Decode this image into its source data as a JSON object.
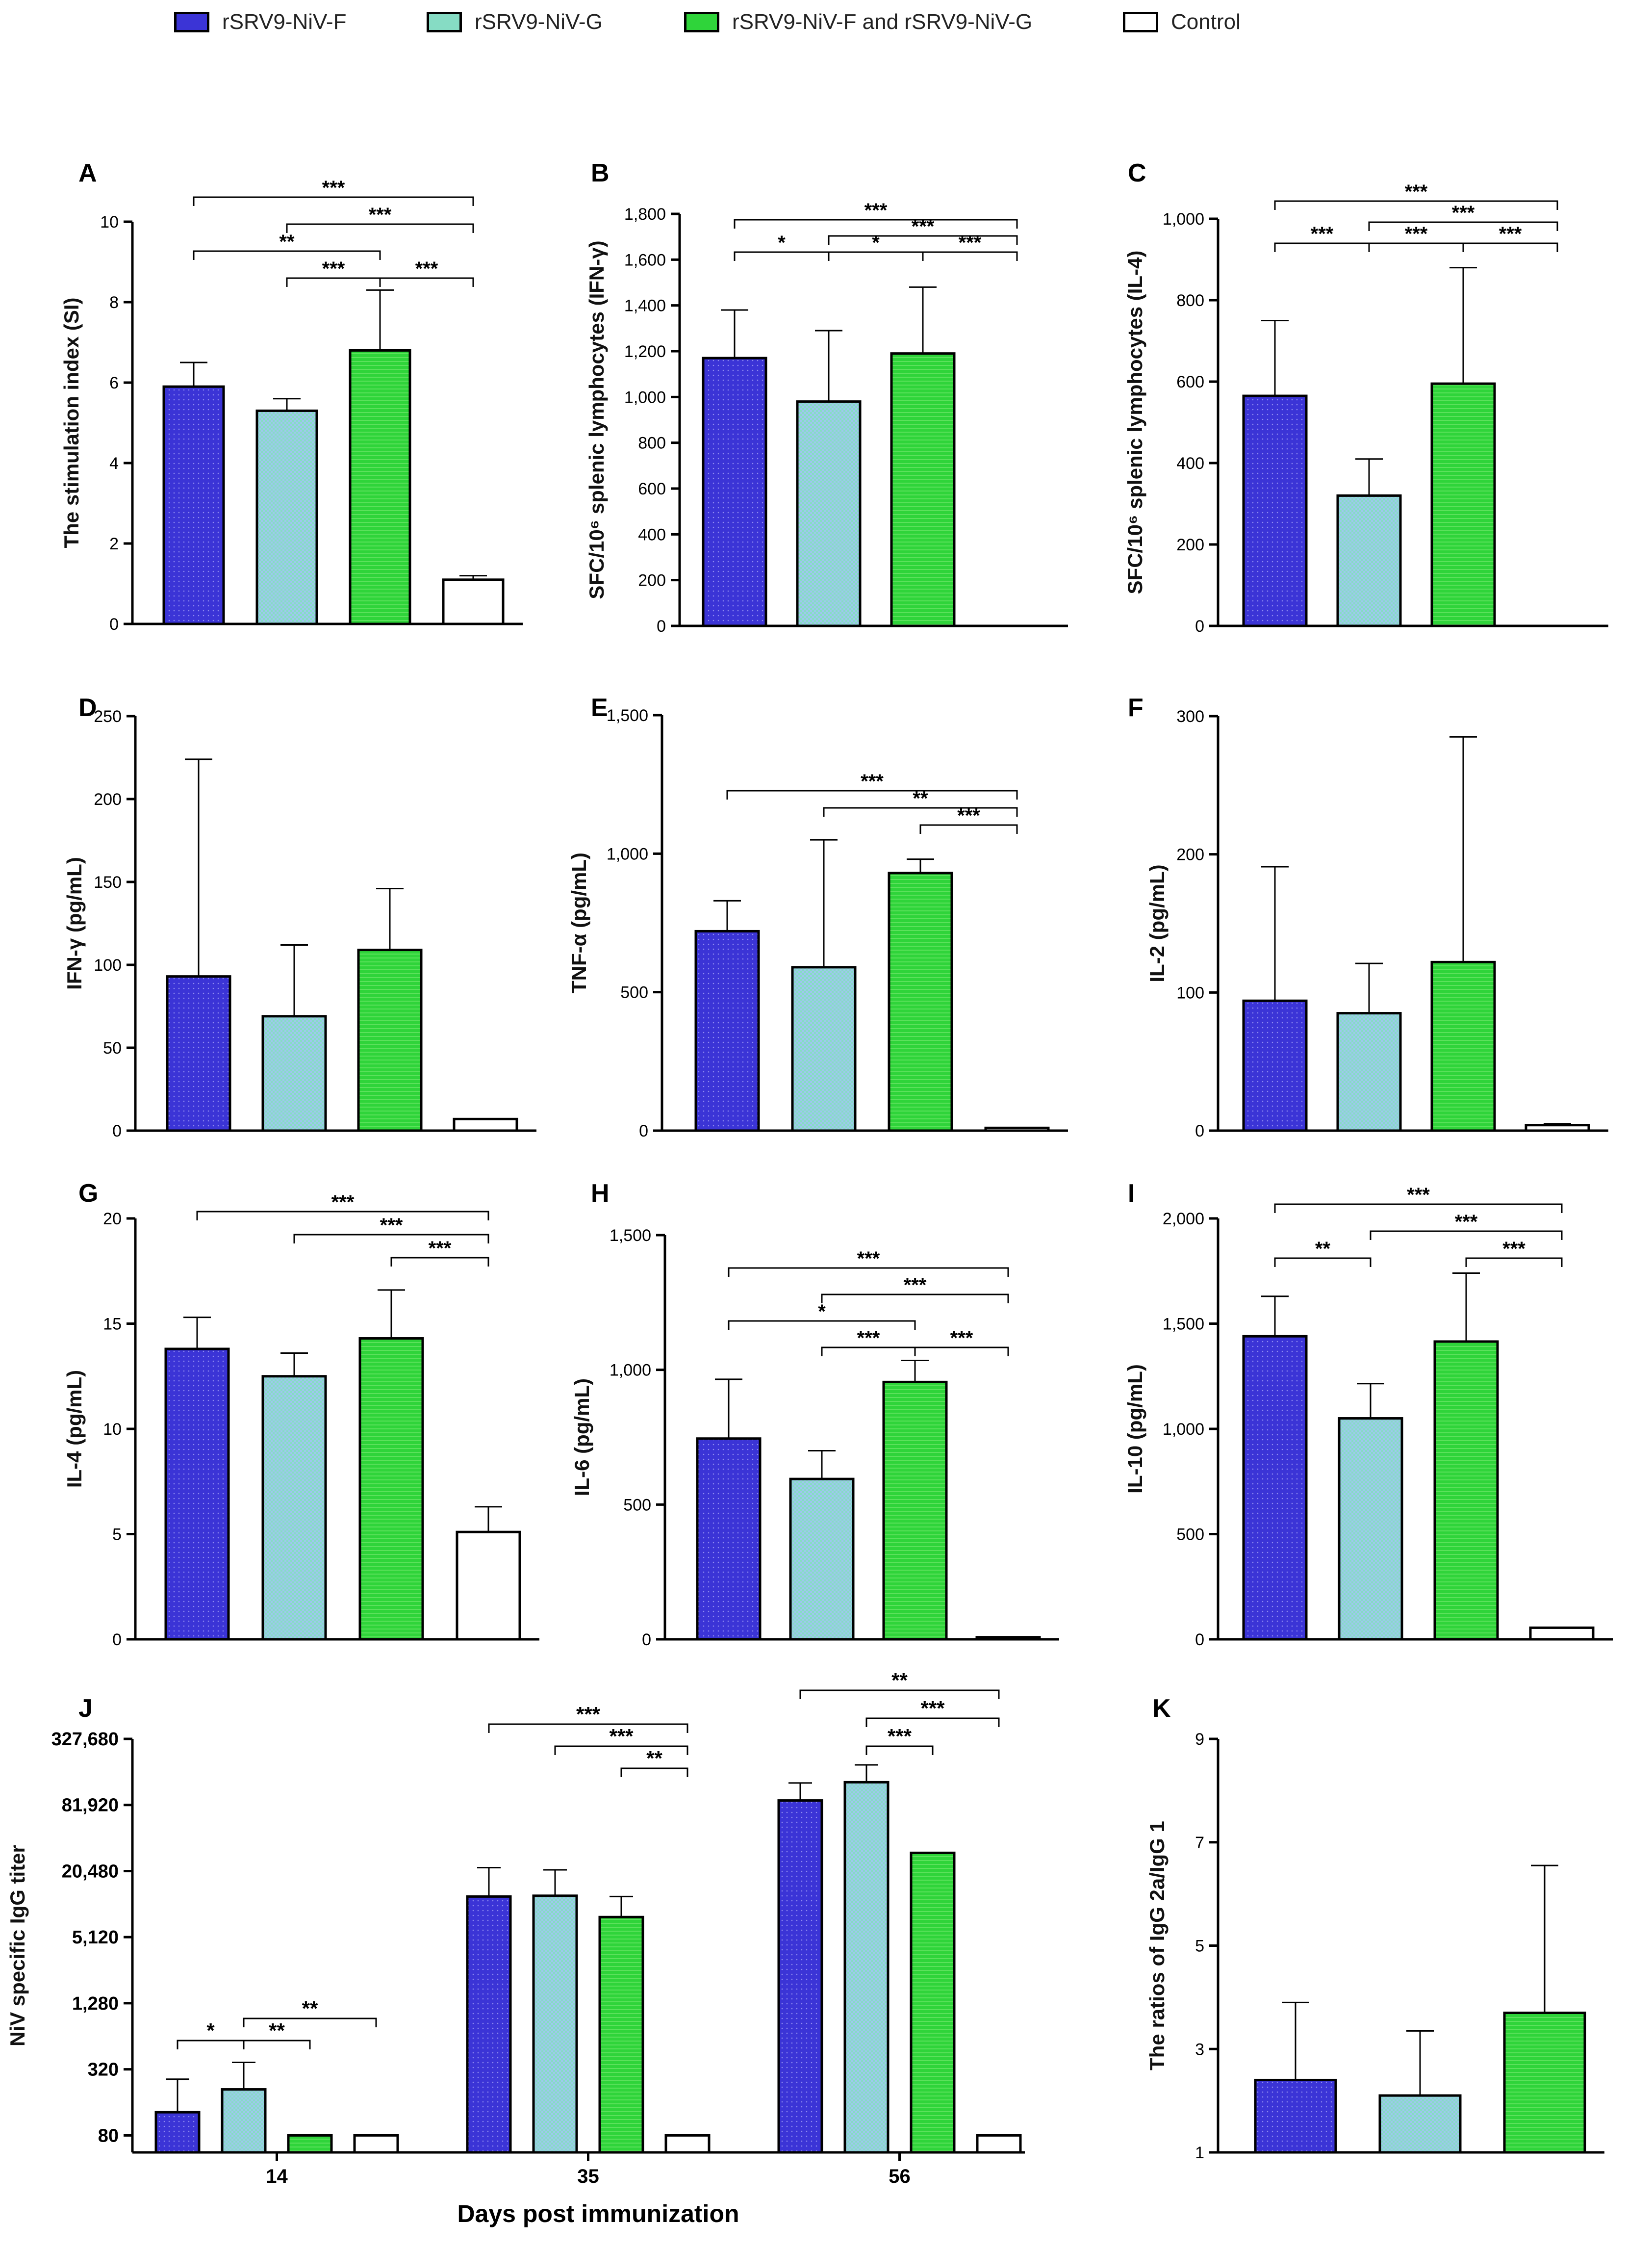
{
  "legend": [
    {
      "key": "F",
      "label": "rSRV9-NiV-F"
    },
    {
      "key": "G",
      "label": "rSRV9-NiV-G"
    },
    {
      "key": "FG",
      "label": "rSRV9-NiV-F and rSRV9-NiV-G"
    },
    {
      "key": "C",
      "label": "Control"
    }
  ],
  "colors": {
    "F": "#3b34d6",
    "G": "#86dcc4",
    "FG": "#2fd43a",
    "C": "#ffffff"
  },
  "chart_data": [
    {
      "panel": "A",
      "type": "bar",
      "ylabel": "The stimulation index (SI)",
      "ylim": [
        0,
        10
      ],
      "ticks": [
        0,
        2,
        4,
        6,
        8,
        10
      ],
      "tick_labels": [
        "0",
        "2",
        "4",
        "6",
        "8",
        "10"
      ],
      "categories": [
        "F",
        "G",
        "FG",
        "C"
      ],
      "values": [
        5.9,
        5.3,
        6.8,
        1.1
      ],
      "errors": [
        0.6,
        0.3,
        1.5,
        0.1
      ],
      "sig": [
        {
          "from": 0,
          "to": 3,
          "label": "***",
          "level": 0
        },
        {
          "from": 1,
          "to": 3,
          "label": "***",
          "level": 1
        },
        {
          "from": 0,
          "to": 2,
          "label": "**",
          "level": 2
        },
        {
          "from": 1,
          "to": 2,
          "label": "***",
          "level": 3
        },
        {
          "from": 2,
          "to": 3,
          "label": "***",
          "level": 3
        }
      ]
    },
    {
      "panel": "B",
      "type": "bar",
      "ylabel": "SFC/10⁶ splenic lymphocytes (IFN-γ)",
      "ylim": [
        0,
        1800
      ],
      "ticks": [
        0,
        200,
        400,
        600,
        800,
        1000,
        1200,
        1400,
        1600,
        1800
      ],
      "tick_labels": [
        "0",
        "200",
        "400",
        "600",
        "800",
        "1,000",
        "1,200",
        "1,400",
        "1,600",
        "1,800"
      ],
      "categories": [
        "F",
        "G",
        "FG",
        "C"
      ],
      "values": [
        1170,
        980,
        1190,
        0
      ],
      "errors": [
        210,
        310,
        290,
        0
      ],
      "sig": [
        {
          "from": 0,
          "to": 3,
          "label": "***",
          "level": 0
        },
        {
          "from": 1,
          "to": 3,
          "label": "***",
          "level": 1
        },
        {
          "from": 0,
          "to": 1,
          "label": "*",
          "level": 2
        },
        {
          "from": 1,
          "to": 2,
          "label": "*",
          "level": 2
        },
        {
          "from": 2,
          "to": 3,
          "label": "***",
          "level": 2
        }
      ]
    },
    {
      "panel": "C",
      "type": "bar",
      "ylabel": "SFC/10⁶ splenic lymphocytes (IL-4)",
      "ylim": [
        0,
        1000
      ],
      "ticks": [
        0,
        200,
        400,
        600,
        800,
        1000
      ],
      "tick_labels": [
        "0",
        "200",
        "400",
        "600",
        "800",
        "1,000"
      ],
      "categories": [
        "F",
        "G",
        "FG",
        "C"
      ],
      "values": [
        565,
        320,
        595,
        0
      ],
      "errors": [
        185,
        90,
        285,
        0
      ],
      "sig": [
        {
          "from": 0,
          "to": 3,
          "label": "***",
          "level": 0
        },
        {
          "from": 1,
          "to": 3,
          "label": "***",
          "level": 1
        },
        {
          "from": 0,
          "to": 1,
          "label": "***",
          "level": 2
        },
        {
          "from": 1,
          "to": 2,
          "label": "***",
          "level": 2
        },
        {
          "from": 2,
          "to": 3,
          "label": "***",
          "level": 2
        }
      ]
    },
    {
      "panel": "D",
      "type": "bar",
      "ylabel": "IFN-γ (pg/mL)",
      "ylim": [
        0,
        250
      ],
      "ticks": [
        0,
        50,
        100,
        150,
        200,
        250
      ],
      "tick_labels": [
        "0",
        "50",
        "100",
        "150",
        "200",
        "250"
      ],
      "categories": [
        "F",
        "G",
        "FG",
        "C"
      ],
      "values": [
        93,
        69,
        109,
        7
      ],
      "errors": [
        131,
        43,
        37,
        0
      ],
      "sig": []
    },
    {
      "panel": "E",
      "type": "bar",
      "ylabel": "TNF-α (pg/mL)",
      "ylim": [
        0,
        1500
      ],
      "ticks": [
        0,
        500,
        1000,
        1500
      ],
      "tick_labels": [
        "0",
        "500",
        "1,000",
        "1,500"
      ],
      "categories": [
        "F",
        "G",
        "FG",
        "C"
      ],
      "values": [
        720,
        590,
        930,
        10
      ],
      "errors": [
        110,
        460,
        50,
        0
      ],
      "sig": [
        {
          "from": 0,
          "to": 3,
          "label": "***",
          "level": 0
        },
        {
          "from": 1,
          "to": 3,
          "label": "**",
          "level": 1
        },
        {
          "from": 2,
          "to": 3,
          "label": "***",
          "level": 2
        }
      ]
    },
    {
      "panel": "F",
      "type": "bar",
      "ylabel": "IL-2 (pg/mL)",
      "ylim": [
        0,
        300
      ],
      "ticks": [
        0,
        100,
        200,
        300
      ],
      "tick_labels": [
        "0",
        "100",
        "200",
        "300"
      ],
      "categories": [
        "F",
        "G",
        "FG",
        "C"
      ],
      "values": [
        94,
        85,
        122,
        4
      ],
      "errors": [
        97,
        36,
        163,
        1
      ],
      "sig": []
    },
    {
      "panel": "G",
      "type": "bar",
      "ylabel": "IL-4 (pg/mL)",
      "ylim": [
        0,
        20
      ],
      "ticks": [
        0,
        5,
        10,
        15,
        20
      ],
      "tick_labels": [
        "0",
        "5",
        "10",
        "15",
        "20"
      ],
      "categories": [
        "F",
        "G",
        "FG",
        "C"
      ],
      "values": [
        13.8,
        12.5,
        14.3,
        5.1
      ],
      "errors": [
        1.5,
        1.1,
        2.3,
        1.2
      ],
      "sig": [
        {
          "from": 0,
          "to": 3,
          "label": "***",
          "level": 0
        },
        {
          "from": 1,
          "to": 3,
          "label": "***",
          "level": 1
        },
        {
          "from": 2,
          "to": 3,
          "label": "***",
          "level": 2
        }
      ]
    },
    {
      "panel": "H",
      "type": "bar",
      "ylabel": "IL-6 (pg/mL)",
      "ylim": [
        0,
        1500
      ],
      "ticks": [
        0,
        500,
        1000,
        1500
      ],
      "tick_labels": [
        "0",
        "500",
        "1,000",
        "1,500"
      ],
      "categories": [
        "F",
        "G",
        "FG",
        "C"
      ],
      "values": [
        745,
        595,
        955,
        8
      ],
      "errors": [
        220,
        105,
        80,
        0
      ],
      "sig": [
        {
          "from": 0,
          "to": 3,
          "label": "***",
          "level": 0
        },
        {
          "from": 1,
          "to": 3,
          "label": "***",
          "level": 1
        },
        {
          "from": 0,
          "to": 2,
          "label": "*",
          "level": 2
        },
        {
          "from": 1,
          "to": 2,
          "label": "***",
          "level": 3
        },
        {
          "from": 2,
          "to": 3,
          "label": "***",
          "level": 3
        }
      ]
    },
    {
      "panel": "I",
      "type": "bar",
      "ylabel": "IL-10 (pg/mL)",
      "ylim": [
        0,
        2000
      ],
      "ticks": [
        0,
        500,
        1000,
        1500,
        2000
      ],
      "tick_labels": [
        "0",
        "500",
        "1,000",
        "1,500",
        "2,000"
      ],
      "categories": [
        "F",
        "G",
        "FG",
        "C"
      ],
      "values": [
        1440,
        1050,
        1415,
        55
      ],
      "errors": [
        190,
        165,
        325,
        0
      ],
      "sig": [
        {
          "from": 0,
          "to": 3,
          "label": "***",
          "level": 0
        },
        {
          "from": 1,
          "to": 3,
          "label": "***",
          "level": 1
        },
        {
          "from": 0,
          "to": 1,
          "label": "**",
          "level": 2
        },
        {
          "from": 2,
          "to": 3,
          "label": "***",
          "level": 2
        }
      ]
    },
    {
      "panel": "J",
      "type": "bar",
      "scale": "log2",
      "ylabel": "NiV specific IgG titer",
      "xlabel": "Days post immunization",
      "ylim": [
        56,
        327680
      ],
      "ticks": [
        80,
        320,
        1280,
        5120,
        20480,
        81920,
        327680
      ],
      "tick_labels": [
        "80",
        "320",
        "1,280",
        "5,120",
        "20,480",
        "81,920",
        "327,680"
      ],
      "groups": [
        "14",
        "35",
        "56"
      ],
      "categories": [
        "F",
        "G",
        "FG",
        "C"
      ],
      "series_values": [
        [
          130,
          12000,
          90000
        ],
        [
          210,
          12200,
          132000
        ],
        [
          80,
          7800,
          30000
        ],
        [
          80,
          80,
          80
        ]
      ],
      "series_upper": [
        [
          260,
          22000,
          130000
        ],
        [
          370,
          21000,
          190000
        ],
        [
          80,
          12000,
          30000
        ],
        [
          80,
          80,
          80
        ]
      ],
      "sig": [
        {
          "group": 0,
          "from": 0,
          "to": 1,
          "label": "*",
          "level": 0
        },
        {
          "group": 0,
          "from": 1,
          "to": 2,
          "label": "**",
          "level": 0
        },
        {
          "group": 0,
          "from": 1,
          "to": 3,
          "label": "**",
          "level": 1
        },
        {
          "group": 1,
          "from": 0,
          "to": 3,
          "label": "***",
          "level": 2
        },
        {
          "group": 1,
          "from": 1,
          "to": 3,
          "label": "***",
          "level": 1
        },
        {
          "group": 1,
          "from": 2,
          "to": 3,
          "label": "**",
          "level": 0
        },
        {
          "group": 2,
          "from": 0,
          "to": 3,
          "label": "**",
          "level": 2
        },
        {
          "group": 2,
          "from": 1,
          "to": 3,
          "label": "***",
          "level": 1
        },
        {
          "group": 2,
          "from": 1,
          "to": 2,
          "label": "***",
          "level": 0
        }
      ]
    },
    {
      "panel": "K",
      "type": "bar",
      "ylabel": "The ratios of IgG 2a/IgG 1",
      "ylim": [
        1,
        9
      ],
      "ticks": [
        1,
        3,
        5,
        7,
        9
      ],
      "tick_labels": [
        "1",
        "3",
        "5",
        "7",
        "9"
      ],
      "categories": [
        "F",
        "G",
        "FG"
      ],
      "values": [
        2.4,
        2.1,
        3.7
      ],
      "errors": [
        1.5,
        1.25,
        2.85
      ],
      "sig": []
    }
  ]
}
